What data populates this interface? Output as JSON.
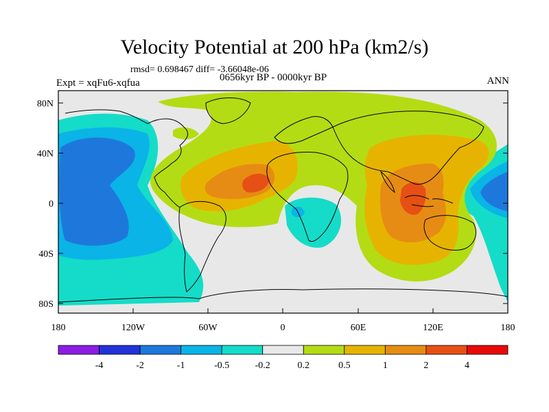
{
  "title": "Velocity Potential at 200 hPa (km2/s)",
  "stats": "rmsd= 0.698467 diff= -3.66048e-06",
  "period": "0656kyr BP - 0000kyr BP",
  "expt": "Expt = xqFu6-xqfua",
  "season": "ANN",
  "map": {
    "lat_ticks": [
      "80N",
      "40N",
      "0",
      "40S",
      "80S"
    ],
    "lon_ticks": [
      "180",
      "120W",
      "60W",
      "0",
      "60E",
      "120E",
      "180"
    ]
  },
  "colorbar": {
    "labels": [
      "-4",
      "-2",
      "-1",
      "-0.5",
      "-0.2",
      "0.2",
      "0.5",
      "1",
      "2",
      "4"
    ],
    "colors": [
      "#8a1ee0",
      "#2232d8",
      "#1e78dc",
      "#0ab4e6",
      "#14dcc8",
      "#e8e8e8",
      "#b4dc14",
      "#e6b400",
      "#e68c14",
      "#e65014",
      "#e60a0a"
    ]
  },
  "colors": {
    "ocean_neutral": "#e8e8e8",
    "coast": "#000000"
  }
}
